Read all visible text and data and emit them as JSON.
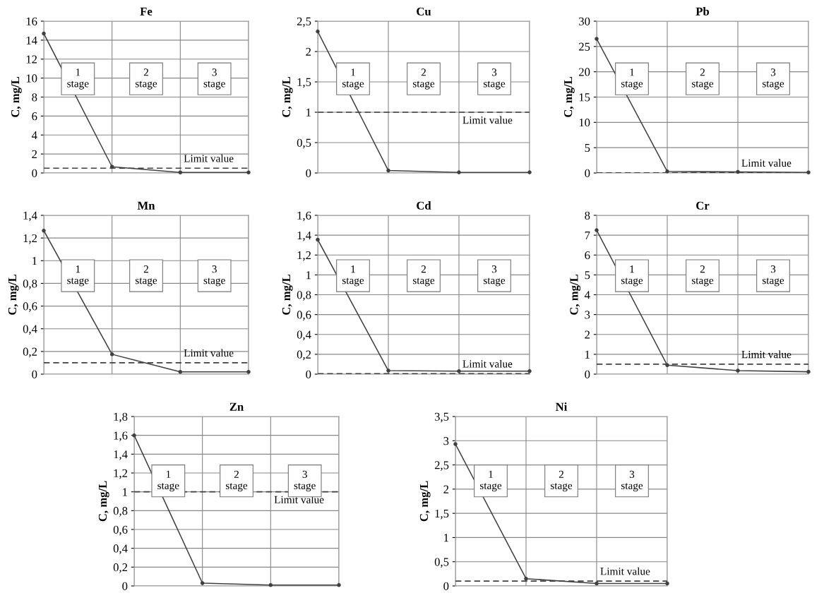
{
  "chart_data": [
    {
      "type": "line",
      "title": "Fe",
      "ylabel": "C, mg/L",
      "categories": [
        null,
        null,
        null,
        null
      ],
      "series": [
        {
          "color": "#404040",
          "values": [
            14.7,
            0.65,
            0.05,
            0.05
          ]
        }
      ],
      "ylim": [
        0,
        16
      ],
      "yticks": [
        0,
        2,
        4,
        6,
        8,
        10,
        12,
        14,
        16
      ],
      "grid": true,
      "marker": "circle",
      "ref_lines": [
        {
          "axis": "y",
          "value": 0.5,
          "label": "Limit value",
          "line_style": "dashed",
          "color": "#404040"
        }
      ],
      "annotations": [
        "1\nstage",
        "2\nstage",
        "3\nstage"
      ]
    },
    {
      "type": "line",
      "title": "Cu",
      "ylabel": "C, mg/L",
      "categories": [
        null,
        null,
        null,
        null
      ],
      "series": [
        {
          "color": "#404040",
          "values": [
            2.33,
            0.04,
            0.01,
            0.01
          ]
        }
      ],
      "ylim": [
        0,
        2.5
      ],
      "yticks": [
        0,
        {
          "value": 0.5,
          "label": "0,5"
        },
        1,
        {
          "value": 1.5,
          "label": "1,5"
        },
        2,
        {
          "value": 2.5,
          "label": "2,5"
        }
      ],
      "grid": true,
      "marker": "circle",
      "ref_lines": [
        {
          "axis": "y",
          "value": 1,
          "label": "Limit value",
          "line_style": "dashed",
          "color": "#404040"
        }
      ],
      "annotations": [
        "1\nstage",
        "2\nstage",
        "3\nstage"
      ]
    },
    {
      "type": "line",
      "title": "Pb",
      "ylabel": "C, mg/L",
      "categories": [
        null,
        null,
        null,
        null
      ],
      "series": [
        {
          "color": "#404040",
          "values": [
            26.5,
            0.3,
            0.2,
            0.1
          ]
        }
      ],
      "ylim": [
        0,
        30
      ],
      "yticks": [
        0,
        5,
        10,
        15,
        20,
        25,
        30
      ],
      "grid": true,
      "marker": "circle",
      "ref_lines": [
        {
          "axis": "y",
          "value": 0.03,
          "label": "Limit value",
          "line_style": "dashed",
          "color": "#404040"
        }
      ],
      "annotations": [
        "1\nstage",
        "2\nstage",
        "3\nstage"
      ]
    },
    {
      "type": "line",
      "title": "Mn",
      "ylabel": "C, mg/L",
      "categories": [
        null,
        null,
        null,
        null
      ],
      "series": [
        {
          "color": "#404040",
          "values": [
            1.265,
            0.175,
            0.02,
            0.02
          ]
        }
      ],
      "ylim": [
        0,
        1.4
      ],
      "yticks": [
        0,
        {
          "value": 0.2,
          "label": "0,2"
        },
        {
          "value": 0.4,
          "label": "0,4"
        },
        {
          "value": 0.6,
          "label": "0,6"
        },
        {
          "value": 0.8,
          "label": "0,8"
        },
        1,
        {
          "value": 1.2,
          "label": "1,2"
        },
        {
          "value": 1.4,
          "label": "1,4"
        }
      ],
      "grid": true,
      "marker": "circle",
      "ref_lines": [
        {
          "axis": "y",
          "value": 0.1,
          "label": "Limit value",
          "line_style": "dashed",
          "color": "#404040"
        }
      ],
      "annotations": [
        "1\nstage",
        "2\nstage",
        "3\nstage"
      ]
    },
    {
      "type": "line",
      "title": "Cd",
      "ylabel": "C, mg/L",
      "categories": [
        null,
        null,
        null,
        null
      ],
      "series": [
        {
          "color": "#404040",
          "values": [
            1.355,
            0.035,
            0.03,
            0.03
          ]
        }
      ],
      "ylim": [
        0,
        1.6
      ],
      "yticks": [
        0,
        {
          "value": 0.2,
          "label": "0,2"
        },
        {
          "value": 0.4,
          "label": "0,4"
        },
        {
          "value": 0.6,
          "label": "0,6"
        },
        {
          "value": 0.8,
          "label": "0,8"
        },
        1,
        {
          "value": 1.2,
          "label": "1,2"
        },
        {
          "value": 1.4,
          "label": "1,4"
        },
        {
          "value": 1.6,
          "label": "1,6"
        }
      ],
      "grid": true,
      "marker": "circle",
      "ref_lines": [
        {
          "axis": "y",
          "value": 0.005,
          "label": "Limit value",
          "line_style": "dashed",
          "color": "#404040"
        }
      ],
      "annotations": [
        "1\nstage",
        "2\nstage",
        "3\nstage"
      ]
    },
    {
      "type": "line",
      "title": "Cr",
      "ylabel": "C, mg/L",
      "categories": [
        null,
        null,
        null,
        null
      ],
      "series": [
        {
          "color": "#404040",
          "values": [
            7.25,
            0.45,
            0.18,
            0.12
          ]
        }
      ],
      "ylim": [
        0,
        8
      ],
      "yticks": [
        0,
        1,
        2,
        3,
        4,
        5,
        6,
        7,
        8
      ],
      "grid": true,
      "marker": "circle",
      "ref_lines": [
        {
          "axis": "y",
          "value": 0.5,
          "label": "Limit value",
          "line_style": "dashed",
          "color": "#404040"
        }
      ],
      "annotations": [
        "1\nstage",
        "2\nstage",
        "3\nstage"
      ]
    },
    {
      "type": "line",
      "title": "Zn",
      "ylabel": "C, mg/L",
      "categories": [
        null,
        null,
        null,
        null
      ],
      "series": [
        {
          "color": "#404040",
          "values": [
            1.6,
            0.03,
            0.01,
            0.01
          ]
        }
      ],
      "ylim": [
        0,
        1.8
      ],
      "yticks": [
        0,
        {
          "value": 0.2,
          "label": "0,2"
        },
        {
          "value": 0.4,
          "label": "0,4"
        },
        {
          "value": 0.6,
          "label": "0,6"
        },
        {
          "value": 0.8,
          "label": "0,8"
        },
        1,
        {
          "value": 1.2,
          "label": "1,2"
        },
        {
          "value": 1.4,
          "label": "1,4"
        },
        {
          "value": 1.6,
          "label": "1,6"
        },
        {
          "value": 1.8,
          "label": "1,8"
        }
      ],
      "grid": true,
      "marker": "circle",
      "ref_lines": [
        {
          "axis": "y",
          "value": 1,
          "label": "Limit value",
          "line_style": "dashed",
          "color": "#404040"
        }
      ],
      "annotations": [
        "1\nstage",
        "2\nstage",
        "3\nstage"
      ]
    },
    {
      "type": "line",
      "title": "Ni",
      "ylabel": "C, mg/L",
      "categories": [
        null,
        null,
        null,
        null
      ],
      "series": [
        {
          "color": "#404040",
          "values": [
            2.93,
            0.15,
            0.05,
            0.05
          ]
        }
      ],
      "ylim": [
        0,
        3.5
      ],
      "yticks": [
        0,
        {
          "value": 0.5,
          "label": "0,5"
        },
        1,
        {
          "value": 1.5,
          "label": "1,5"
        },
        2,
        {
          "value": 2.5,
          "label": "2,5"
        },
        3,
        {
          "value": 3.5,
          "label": "3,5"
        }
      ],
      "grid": true,
      "marker": "circle",
      "ref_lines": [
        {
          "axis": "y",
          "value": 0.1,
          "label": "Limit value",
          "line_style": "dashed",
          "color": "#404040"
        }
      ],
      "annotations": [
        "1\nstage",
        "2\nstage",
        "3\nstage"
      ]
    }
  ]
}
